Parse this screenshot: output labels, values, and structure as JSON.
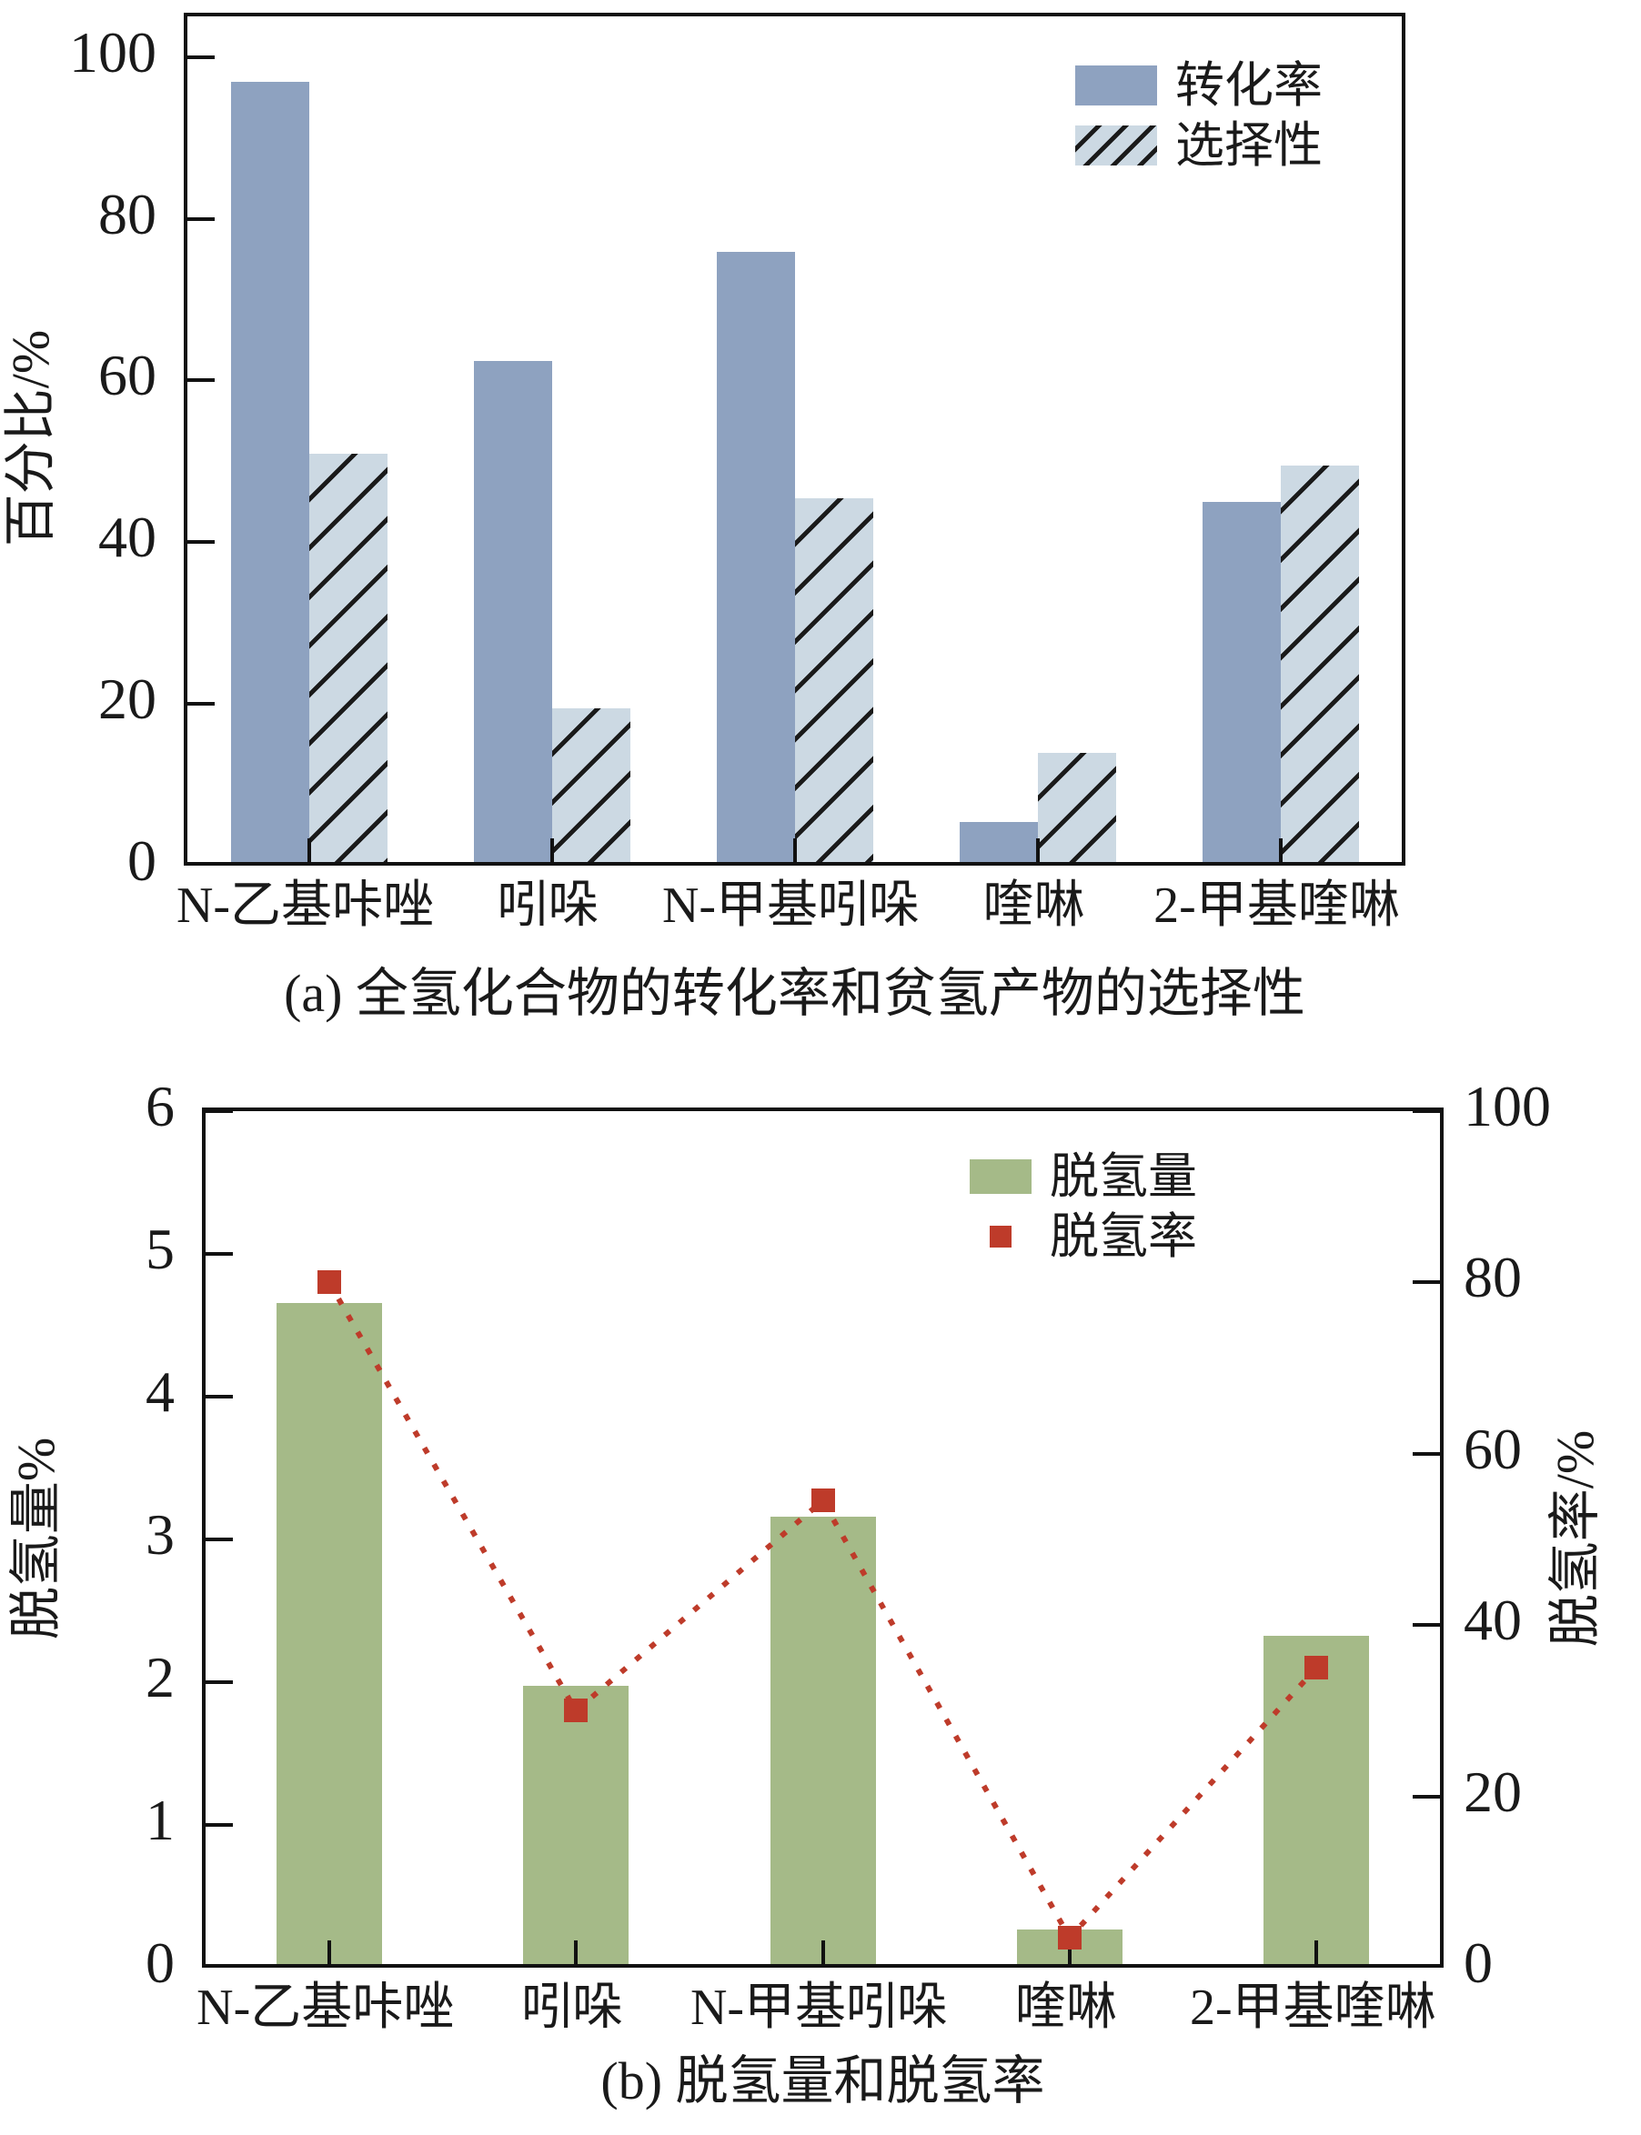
{
  "figure": {
    "background": "#ffffff",
    "axis_color": "#111111"
  },
  "chart_data": [
    {
      "type": "bar",
      "panel": "a",
      "title": "(a) 全氢化合物的转化率和贫氢产物的选择性",
      "categories": [
        "N-乙基咔唑",
        "吲哚",
        "N-甲基吲哚",
        "喹啉",
        "2-甲基喹啉"
      ],
      "series": [
        {
          "name": "转化率",
          "values": [
            96.5,
            62,
            75.5,
            5,
            44.5
          ],
          "style": "solid",
          "color": "#8EA2C0"
        },
        {
          "name": "选择性",
          "values": [
            50.5,
            19,
            45,
            13.5,
            49
          ],
          "style": "hatched",
          "color": "#CCD9E3"
        }
      ],
      "xlabel": "",
      "ylabel": "百分比/%",
      "ylim": [
        0,
        100
      ],
      "yticks": [
        0,
        20,
        40,
        60,
        80,
        100
      ],
      "grid": "off",
      "legend_position": "top-right"
    },
    {
      "type": "bar+scatter",
      "panel": "b",
      "title": "(b) 脱氢量和脱氢率",
      "categories": [
        "N-乙基咔唑",
        "吲哚",
        "N-甲基吲哚",
        "喹啉",
        "2-甲基喹啉"
      ],
      "bar_series": {
        "name": "脱氢量",
        "values": [
          4.63,
          1.95,
          3.13,
          0.24,
          2.3
        ],
        "color": "#A5BA88",
        "axis": "left"
      },
      "scatter_series": {
        "name": "脱氢率",
        "values": [
          80,
          30,
          54.5,
          3.5,
          35
        ],
        "color": "#BE3B2A",
        "axis": "right",
        "marker": "square",
        "line": "dotted"
      },
      "xlabel": "",
      "ylabel_left": "脱氢量%",
      "ylim_left": [
        0,
        6
      ],
      "yticks_left": [
        0,
        1,
        2,
        3,
        4,
        5,
        6
      ],
      "ylabel_right": "脱氢率/%",
      "ylim_right": [
        0,
        100
      ],
      "yticks_right": [
        0,
        20,
        40,
        60,
        80,
        100
      ],
      "grid": "off",
      "legend_position": "top-center"
    }
  ]
}
